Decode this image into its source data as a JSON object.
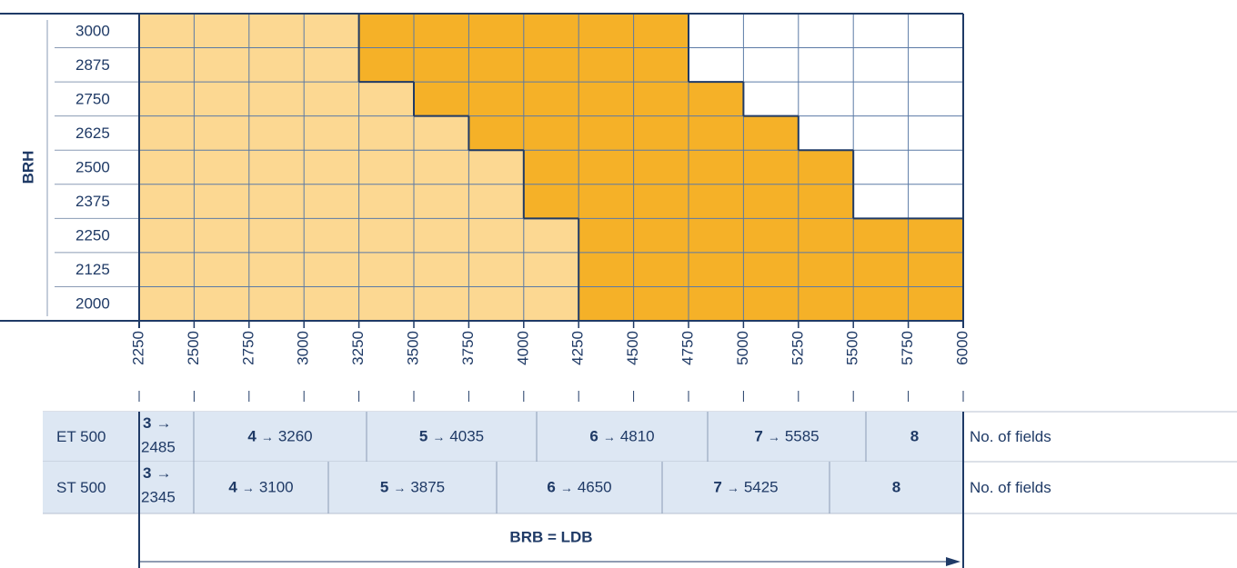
{
  "y_axis_label": "BRH",
  "palette": {
    "L": "#fcd892",
    "D": "#f5b128",
    "W": "#ffffff"
  },
  "rows": [
    {
      "label": "3000",
      "cells": "LLLLDDDDDDWWWWW"
    },
    {
      "label": "2875",
      "cells": "LLLLDDDDDDWWWWW"
    },
    {
      "label": "2750",
      "cells": "LLLLLDDDDDDWWWW"
    },
    {
      "label": "2625",
      "cells": "LLLLLLDDDDDDWWW"
    },
    {
      "label": "2500",
      "cells": "LLLLLLLDDDDDDWW"
    },
    {
      "label": "2375",
      "cells": "LLLLLLLDDDDDDWW"
    },
    {
      "label": "2250",
      "cells": "LLLLLLLLDDDDDDD"
    },
    {
      "label": "2125",
      "cells": "LLLLLLLLDDDDDDD"
    },
    {
      "label": "2000",
      "cells": "LLLLLLLLDDDDDDD"
    }
  ],
  "x_ticks": [
    "2250",
    "2500",
    "2750",
    "3000",
    "3250",
    "3500",
    "3750",
    "4000",
    "4250",
    "4500",
    "4750",
    "5000",
    "5250",
    "5500",
    "5750",
    "6000"
  ],
  "arrow": "→",
  "table": [
    {
      "label": "ET 500",
      "note": "No. of fields",
      "cells": [
        {
          "n": "3",
          "v": "2485"
        },
        {
          "n": "4",
          "v": "3260"
        },
        {
          "n": "5",
          "v": "4035"
        },
        {
          "n": "6",
          "v": "4810"
        },
        {
          "n": "7",
          "v": "5585"
        },
        {
          "n": "8"
        }
      ]
    },
    {
      "label": "ST 500",
      "note": "No. of fields",
      "cells": [
        {
          "n": "3",
          "v": "2345"
        },
        {
          "n": "4",
          "v": "3100"
        },
        {
          "n": "5",
          "v": "3875"
        },
        {
          "n": "6",
          "v": "4650"
        },
        {
          "n": "7",
          "v": "5425"
        },
        {
          "n": "8"
        }
      ]
    }
  ],
  "footer": "BRB = LDB"
}
